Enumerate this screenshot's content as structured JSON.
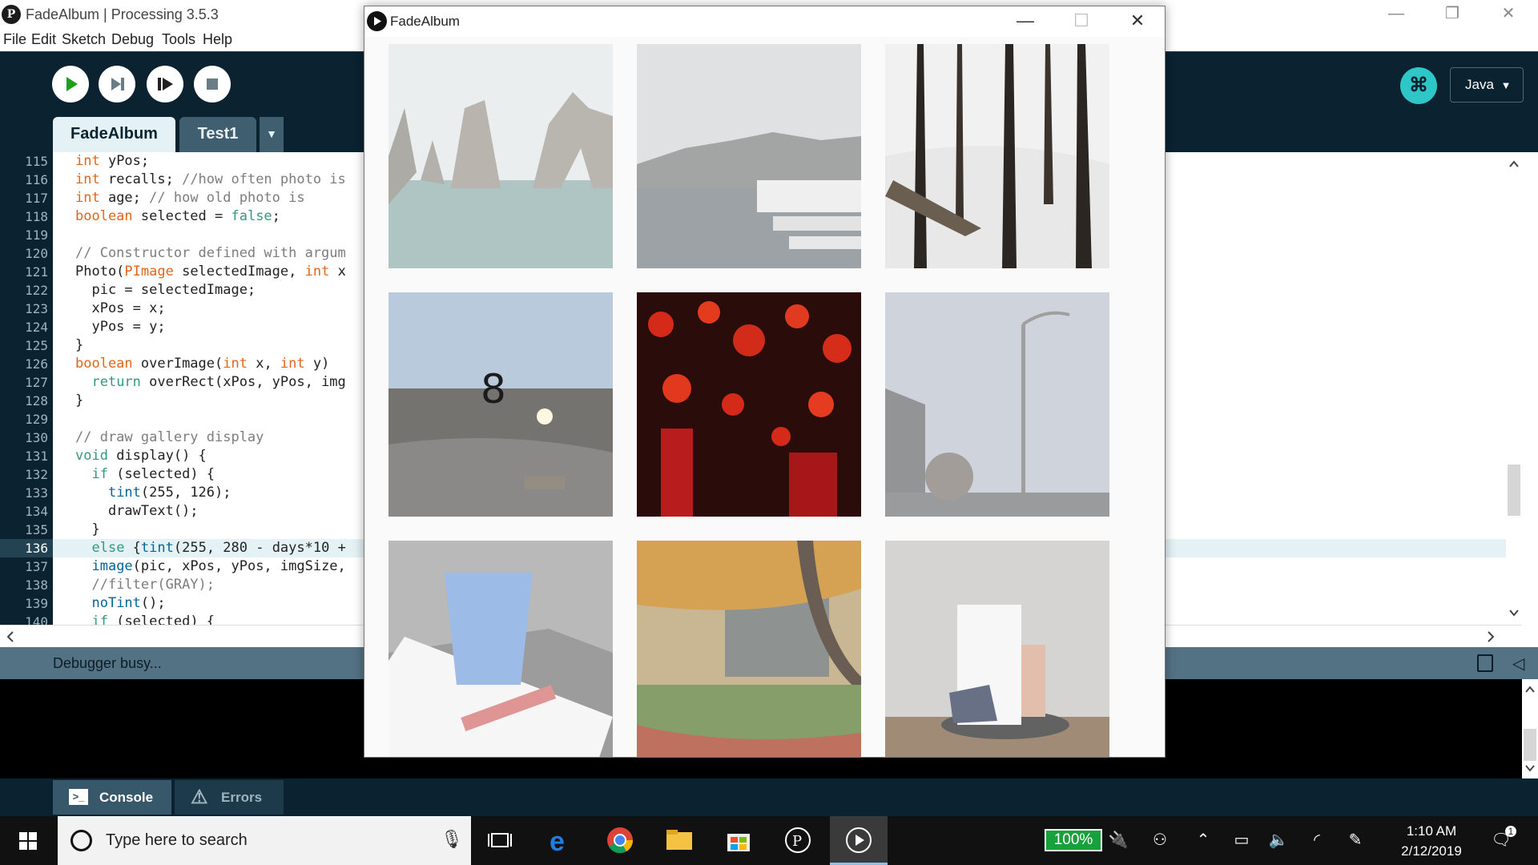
{
  "ide": {
    "title": "FadeAlbum | Processing 3.5.3",
    "menu": [
      "File",
      "Edit",
      "Sketch",
      "Debug",
      "Tools",
      "Help"
    ],
    "tabs": {
      "active": "FadeAlbum",
      "other": "Test1",
      "menu_glyph": "▼"
    },
    "mode": "Java",
    "mode_caret": "▼",
    "status": "Debugger busy...",
    "bottom_tabs": {
      "console": "Console",
      "errors": "Errors"
    },
    "current_line": 136,
    "line_numbers": [
      "115",
      "116",
      "117",
      "118",
      "119",
      "120",
      "121",
      "122",
      "123",
      "124",
      "125",
      "126",
      "127",
      "128",
      "129",
      "130",
      "131",
      "132",
      "133",
      "134",
      "135",
      "136",
      "137",
      "138",
      "139",
      "140"
    ],
    "code": [
      [
        {
          "t": "int",
          "c": "kw"
        },
        {
          "t": " yPos;"
        }
      ],
      [
        {
          "t": "int",
          "c": "kw"
        },
        {
          "t": " recalls; "
        },
        {
          "t": "//how often photo is",
          "c": "cm"
        }
      ],
      [
        {
          "t": "int",
          "c": "kw"
        },
        {
          "t": " age; "
        },
        {
          "t": "// how old photo is",
          "c": "cm"
        }
      ],
      [
        {
          "t": "boolean",
          "c": "kw"
        },
        {
          "t": " selected = "
        },
        {
          "t": "false",
          "c": "ty"
        },
        {
          "t": ";"
        }
      ],
      [
        {
          "t": ""
        }
      ],
      [
        {
          "t": "// Constructor defined with argum",
          "c": "cm"
        }
      ],
      [
        {
          "t": "Photo("
        },
        {
          "t": "PImage",
          "c": "kw"
        },
        {
          "t": " selectedImage, "
        },
        {
          "t": "int",
          "c": "kw"
        },
        {
          "t": " x"
        }
      ],
      [
        {
          "t": "  pic = selectedImage;"
        }
      ],
      [
        {
          "t": "  xPos = x;"
        }
      ],
      [
        {
          "t": "  yPos = y;"
        }
      ],
      [
        {
          "t": "}"
        }
      ],
      [
        {
          "t": "boolean",
          "c": "kw"
        },
        {
          "t": " overImage("
        },
        {
          "t": "int",
          "c": "kw"
        },
        {
          "t": " x, "
        },
        {
          "t": "int",
          "c": "kw"
        },
        {
          "t": " y)"
        }
      ],
      [
        {
          "t": "  "
        },
        {
          "t": "return",
          "c": "ty"
        },
        {
          "t": " overRect(xPos, yPos, img"
        }
      ],
      [
        {
          "t": "}"
        }
      ],
      [
        {
          "t": ""
        }
      ],
      [
        {
          "t": "// draw gallery display",
          "c": "cm"
        }
      ],
      [
        {
          "t": "void",
          "c": "ty"
        },
        {
          "t": " display() {"
        }
      ],
      [
        {
          "t": "  "
        },
        {
          "t": "if",
          "c": "ty"
        },
        {
          "t": " (selected) {"
        }
      ],
      [
        {
          "t": "    "
        },
        {
          "t": "tint",
          "c": "fn"
        },
        {
          "t": "(255, 126);"
        }
      ],
      [
        {
          "t": "    drawText();"
        }
      ],
      [
        {
          "t": "  }"
        }
      ],
      [
        {
          "t": "  "
        },
        {
          "t": "else",
          "c": "ty"
        },
        {
          "t": " {"
        },
        {
          "t": "tint",
          "c": "fn"
        },
        {
          "t": "(255, 280 - days*10 +"
        }
      ],
      [
        {
          "t": "  "
        },
        {
          "t": "image",
          "c": "fn"
        },
        {
          "t": "(pic, xPos, yPos, imgSize,"
        }
      ],
      [
        {
          "t": "  "
        },
        {
          "t": "//filter(GRAY);",
          "c": "cm"
        }
      ],
      [
        {
          "t": "  "
        },
        {
          "t": "noTint",
          "c": "fn"
        },
        {
          "t": "();"
        }
      ],
      [
        {
          "t": "  "
        },
        {
          "t": "if",
          "c": "ty"
        },
        {
          "t": " (selected) {"
        }
      ]
    ]
  },
  "sketch": {
    "title": "FadeAlbum",
    "controls": {
      "minimize": "—",
      "maximize": "☐",
      "close": "✕"
    },
    "selected_photo_number": "8",
    "photos": [
      {
        "subject": "sea arches",
        "fade": 0.45
      },
      {
        "subject": "marina",
        "fade": 0.45
      },
      {
        "subject": "snowy forest",
        "fade": 0.0
      },
      {
        "subject": "winter park sunset",
        "fade": 0.3
      },
      {
        "subject": "red lanterns",
        "fade": 0.0
      },
      {
        "subject": "street lamp",
        "fade": 0.5
      },
      {
        "subject": "glass of water",
        "fade": 0.55
      },
      {
        "subject": "autumn tree",
        "fade": 0.25
      },
      {
        "subject": "gallery installation",
        "fade": 0.3
      }
    ]
  },
  "taskbar": {
    "search_placeholder": "Type here to search",
    "battery": "100%",
    "time": "1:10 AM",
    "date": "2/12/2019",
    "notifications": "1"
  }
}
